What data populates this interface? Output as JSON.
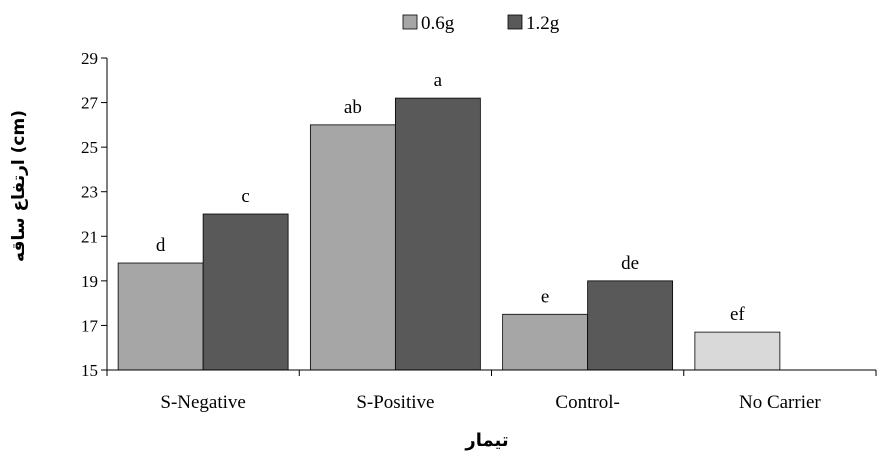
{
  "chart_data": {
    "type": "bar",
    "categories": [
      "S-Negative",
      "S-Positive",
      "Control-",
      "No Carrier"
    ],
    "series": [
      {
        "name": "0.6g",
        "color": "#a6a6a6",
        "values": [
          19.8,
          26.0,
          17.5,
          16.7
        ],
        "letters": [
          "d",
          "ab",
          "e",
          "ef"
        ]
      },
      {
        "name": "1.2g",
        "color": "#595959",
        "values": [
          22.0,
          27.2,
          19.0,
          null
        ],
        "letters": [
          "c",
          "a",
          "de",
          null
        ]
      }
    ],
    "bar_color_overrides": [
      {
        "series": 0,
        "category": 3,
        "color": "#d9d9d9"
      }
    ],
    "xlabel": "تیمار",
    "ylabel": "ارتفاع ساقه (cm)",
    "ylim": [
      15,
      29
    ],
    "yticks": [
      15,
      17,
      19,
      21,
      23,
      25,
      27,
      29
    ],
    "grid": false,
    "legend_position": "top-center"
  }
}
